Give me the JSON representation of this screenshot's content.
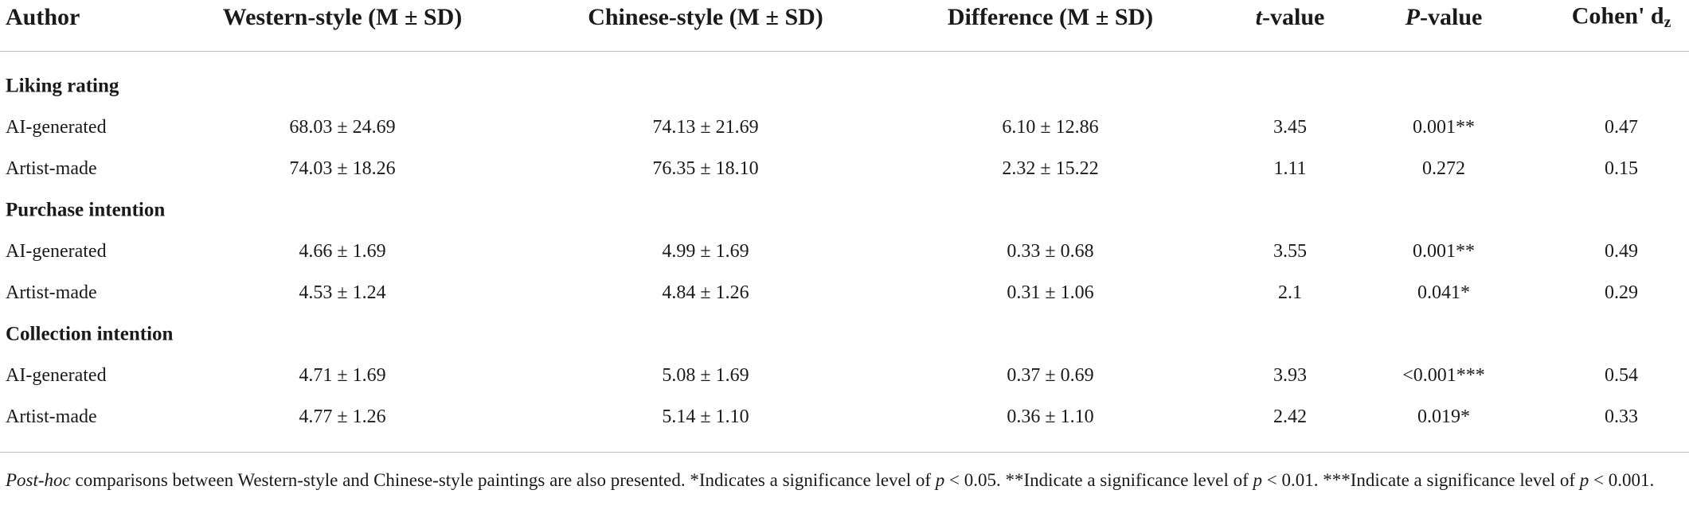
{
  "table": {
    "header": [
      "Author",
      "Western-style (M ± SD)",
      "Chinese-style (M ± SD)",
      "Difference (M ± SD)",
      {
        "italic": "t",
        "rest": "-value"
      },
      {
        "italic": "P",
        "rest": "-value"
      },
      {
        "text": "Cohen' d",
        "sub": "z"
      }
    ],
    "sections": [
      {
        "title": "Liking rating",
        "rows": [
          [
            "AI-generated",
            "68.03 ± 24.69",
            "74.13 ± 21.69",
            "6.10 ± 12.86",
            "3.45",
            "0.001**",
            "0.47"
          ],
          [
            "Artist-made",
            "74.03 ± 18.26",
            "76.35 ± 18.10",
            "2.32 ± 15.22",
            "1.11",
            "0.272",
            "0.15"
          ]
        ]
      },
      {
        "title": "Purchase intention",
        "rows": [
          [
            "AI-generated",
            "4.66 ± 1.69",
            "4.99 ± 1.69",
            "0.33 ± 0.68",
            "3.55",
            "0.001**",
            "0.49"
          ],
          [
            "Artist-made",
            "4.53 ± 1.24",
            "4.84 ± 1.26",
            "0.31 ± 1.06",
            "2.1",
            "0.041*",
            "0.29"
          ]
        ]
      },
      {
        "title": "Collection intention",
        "rows": [
          [
            "AI-generated",
            "4.71 ± 1.69",
            "5.08 ± 1.69",
            "0.37 ± 0.69",
            "3.93",
            "<0.001***",
            "0.54"
          ],
          [
            "Artist-made",
            "4.77 ± 1.26",
            "5.14 ± 1.10",
            "0.36 ± 1.10",
            "2.42",
            "0.019*",
            "0.33"
          ]
        ]
      }
    ]
  },
  "footnote": [
    "Post-hoc",
    " comparisons between Western-style and Chinese-style paintings are also presented. *Indicates a significance level of ",
    "p",
    " < 0.05. **Indicate a significance level of ",
    "p",
    " < 0.01. ***Indicate a significance level of ",
    "p",
    " < 0.001."
  ]
}
